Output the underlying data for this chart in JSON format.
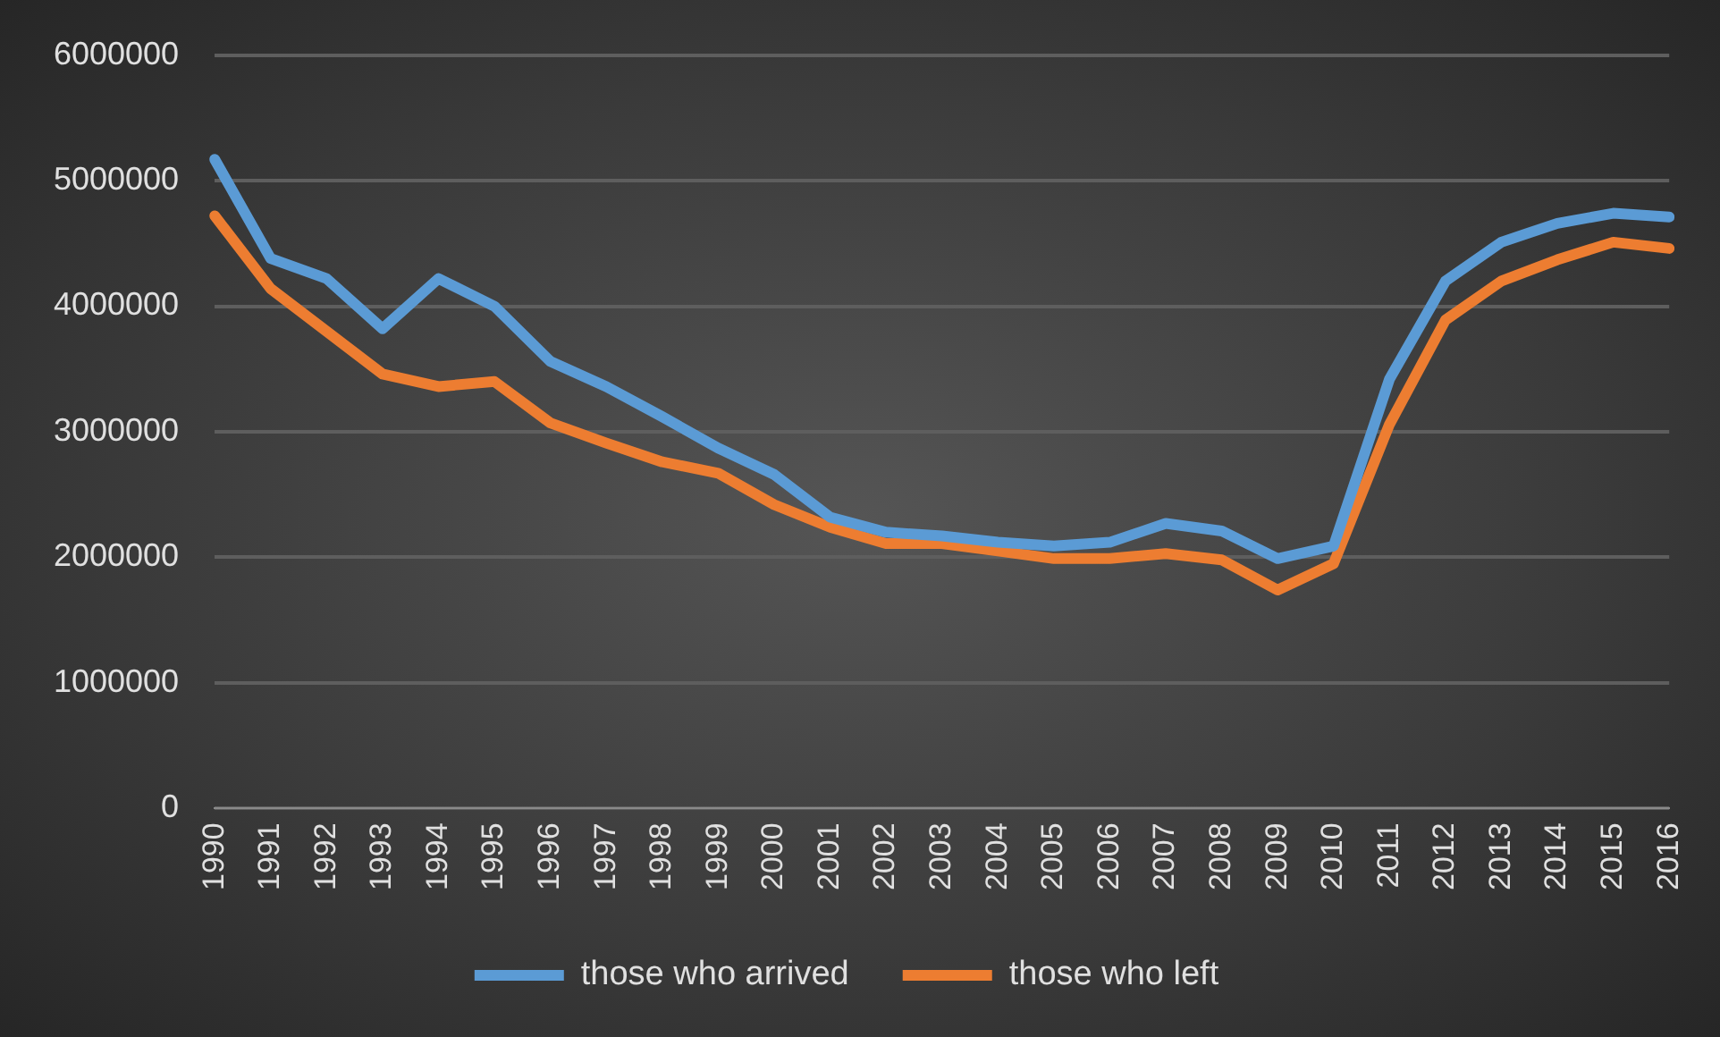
{
  "chart_data": {
    "type": "line",
    "categories": [
      "1990",
      "1991",
      "1992",
      "1993",
      "1994",
      "1995",
      "1996",
      "1997",
      "1998",
      "1999",
      "2000",
      "2001",
      "2002",
      "2003",
      "2004",
      "2005",
      "2006",
      "2007",
      "2008",
      "2009",
      "2010",
      "2011",
      "2012",
      "2013",
      "2014",
      "2015",
      "2016"
    ],
    "series": [
      {
        "name": "those who arrived",
        "color": "#5b9bd5",
        "values": [
          5170000,
          4380000,
          4220000,
          3820000,
          4220000,
          4000000,
          3560000,
          3360000,
          3120000,
          2870000,
          2660000,
          2320000,
          2200000,
          2170000,
          2120000,
          2090000,
          2120000,
          2270000,
          2210000,
          1990000,
          2090000,
          3420000,
          4200000,
          4510000,
          4660000,
          4740000,
          4710000
        ]
      },
      {
        "name": "those who left",
        "color": "#ed7d31",
        "values": [
          4720000,
          4140000,
          3800000,
          3460000,
          3360000,
          3400000,
          3070000,
          2910000,
          2760000,
          2670000,
          2420000,
          2240000,
          2110000,
          2110000,
          2050000,
          1990000,
          1990000,
          2030000,
          1980000,
          1740000,
          1950000,
          3060000,
          3890000,
          4200000,
          4370000,
          4510000,
          4460000
        ]
      }
    ],
    "ylim": [
      0,
      6000000
    ],
    "yticks": [
      0,
      1000000,
      2000000,
      3000000,
      4000000,
      5000000,
      6000000
    ],
    "grid": "y",
    "legend": "bottom",
    "marker": "none",
    "line_style": "solid"
  }
}
